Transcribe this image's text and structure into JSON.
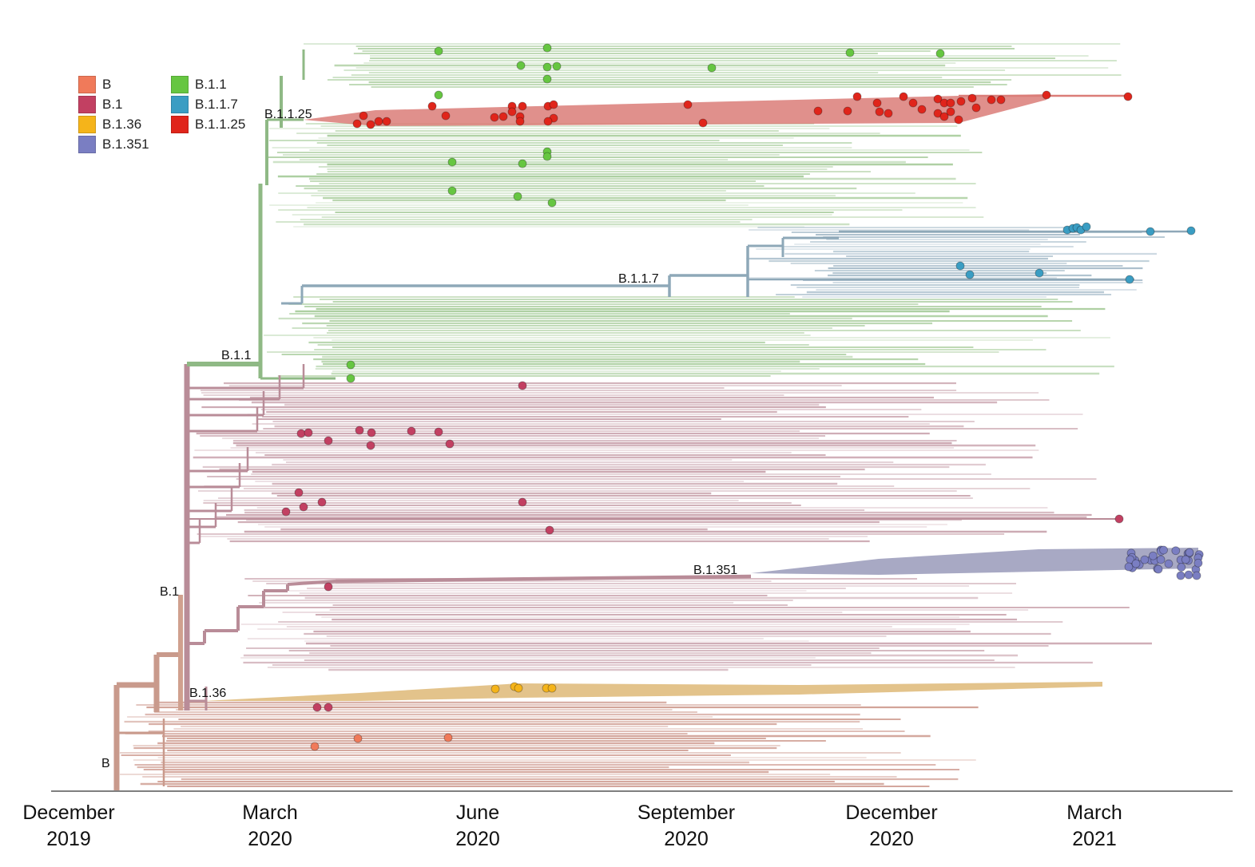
{
  "legend": {
    "items": [
      {
        "label": "B",
        "color": "#f07a5a"
      },
      {
        "label": "B.1.1",
        "color": "#66c641"
      },
      {
        "label": "B.1",
        "color": "#c24062"
      },
      {
        "label": "B.1.1.7",
        "color": "#3a9dc3"
      },
      {
        "label": "B.1.36",
        "color": "#f5b41a"
      },
      {
        "label": "B.1.1.25",
        "color": "#e0251b"
      },
      {
        "label": "B.1.351",
        "color": "#7a7ec2"
      }
    ]
  },
  "lineage_labels": {
    "b": "B",
    "b1": "B.1",
    "b11": "B.1.1",
    "b1125": "B.1.1.25",
    "b117": "B.1.1.7",
    "b1351": "B.1.351",
    "b136": "B.1.36"
  },
  "time_axis": {
    "ticks": [
      {
        "line1": "December",
        "line2": "2019"
      },
      {
        "line1": "March",
        "line2": "2020"
      },
      {
        "line1": "June",
        "line2": "2020"
      },
      {
        "line1": "September",
        "line2": "2020"
      },
      {
        "line1": "December",
        "line2": "2020"
      },
      {
        "line1": "March",
        "line2": "2021"
      }
    ]
  },
  "clade_colors": {
    "b_branch": "#c99a8c",
    "b_tip": "#cf9d92",
    "b1_branch": "#b98c98",
    "b1_tip": "#c9a3ad",
    "b11_branch": "#8fb985",
    "b11_tip": "#a9cd9d",
    "b117_branch": "#8ea8b8",
    "b117_tip": "#a7bcca",
    "b1125_band": "#db7d78",
    "b1351_band": "#9ea0be",
    "b136_band": "#dcb46e"
  },
  "sample_markers": {
    "b11_green": "#66c641",
    "b1125_red": "#e0251b",
    "b117_blue": "#3a9dc3",
    "b1_crimson": "#c24062",
    "b1351_purple": "#7a7ec2",
    "b136_yellow": "#f5b41a",
    "b_orange": "#f07a5a"
  }
}
